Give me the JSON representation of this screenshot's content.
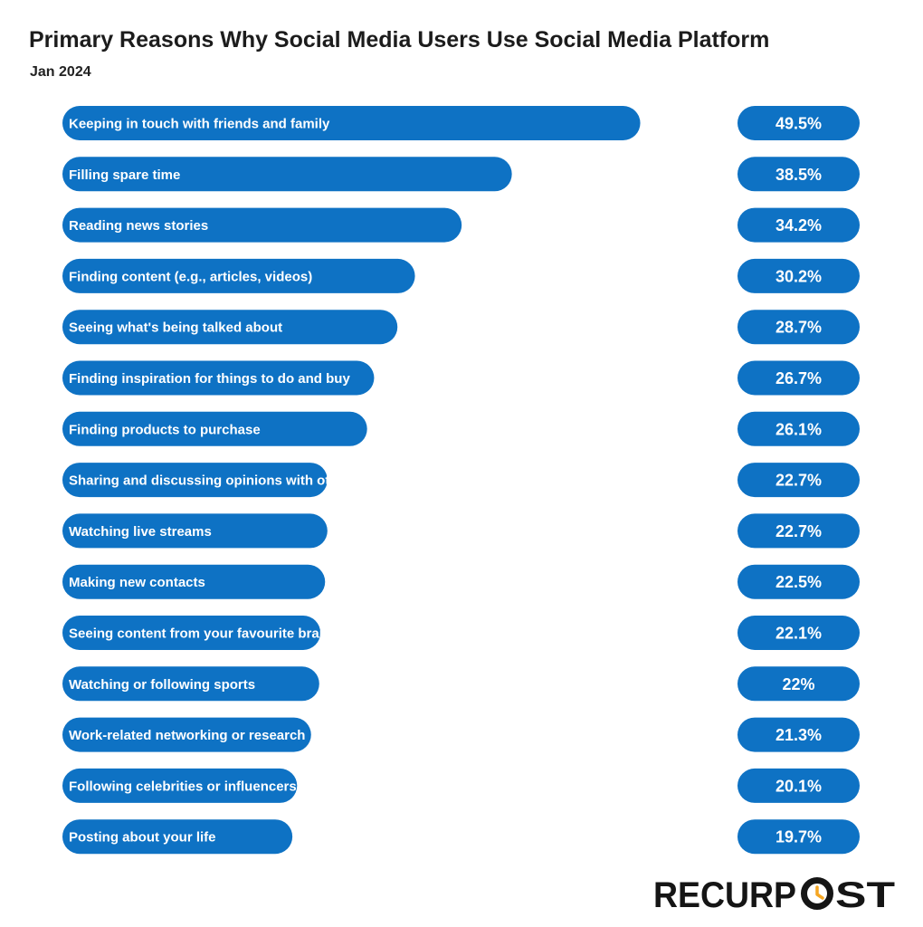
{
  "title": "Primary Reasons Why Social Media Users Use Social Media Platform",
  "subtitle": "Jan 2024",
  "colors": {
    "bar": "#0e72c4",
    "brand_dark": "#151515",
    "brand_accent": "#f5a623"
  },
  "brand": {
    "before": "RECURP",
    "after": "ST",
    "icon": "clock-o-icon"
  },
  "chart_data": {
    "type": "bar",
    "orientation": "horizontal",
    "categories": [
      "Keeping in touch with friends and family",
      "Filling spare time",
      "Reading news stories",
      "Finding content (e.g., articles, videos)",
      "Seeing what's being talked about",
      "Finding inspiration for things to do and buy",
      "Finding products to purchase",
      "Sharing and discussing opinions with others",
      "Watching live streams",
      "Making new contacts",
      "Seeing content from your favourite brands",
      "Watching or following sports",
      "Work-related networking or research",
      "Following celebrities or influencers",
      "Posting about your life"
    ],
    "values": [
      49.5,
      38.5,
      34.2,
      30.2,
      28.7,
      26.7,
      26.1,
      22.7,
      22.7,
      22.5,
      22.1,
      22,
      21.3,
      20.1,
      19.7
    ],
    "value_labels": [
      "49.5%",
      "38.5%",
      "34.2%",
      "30.2%",
      "28.7%",
      "26.7%",
      "26.1%",
      "22.7%",
      "22.7%",
      "22.5%",
      "22.1%",
      "22%",
      "21.3%",
      "20.1%",
      "19.7%"
    ],
    "unit": "%",
    "grid": false,
    "legend": "none"
  }
}
